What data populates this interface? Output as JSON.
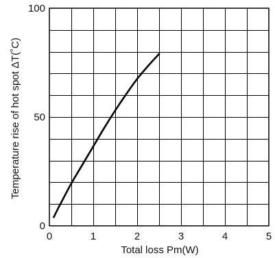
{
  "chart_data": {
    "type": "line",
    "title": "",
    "xlabel": "Total loss Pm(W)",
    "ylabel": "Temperature rise of hot spot ΔT(˚C)",
    "xlim": [
      0,
      5
    ],
    "ylim": [
      0,
      100
    ],
    "x_ticks": [
      0,
      1,
      2,
      3,
      4,
      5
    ],
    "x_tick_labels": [
      "0",
      "1",
      "2",
      "3",
      "4",
      "5"
    ],
    "y_ticks": [
      0,
      50,
      100
    ],
    "y_tick_labels": [
      "0",
      "50",
      "100"
    ],
    "x_grid_step": 0.5,
    "y_grid_step": 10,
    "grid": true,
    "legend": "none",
    "series": [
      {
        "x": [
          0.1,
          0.25,
          0.5,
          0.75,
          1.0,
          1.25,
          1.5,
          1.75,
          2.0,
          2.25,
          2.5
        ],
        "y": [
          4,
          10,
          19.5,
          28,
          36.5,
          45,
          53,
          60.5,
          67.5,
          73.5,
          79
        ]
      }
    ],
    "colors": {
      "line": "#000000",
      "grid": "#000000",
      "text": "#111111"
    }
  }
}
